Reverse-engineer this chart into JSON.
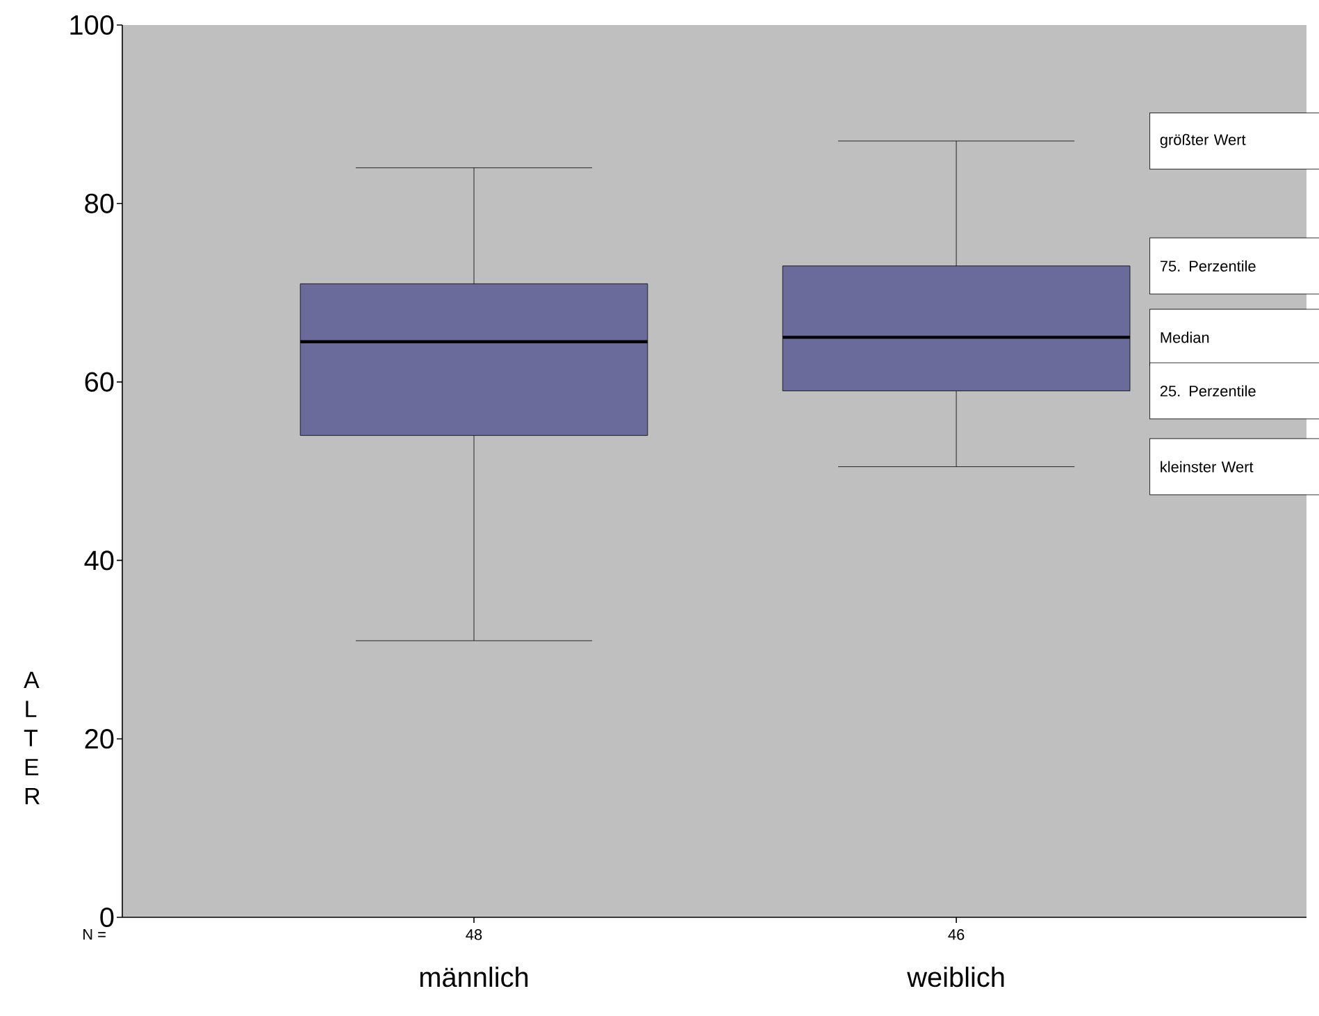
{
  "chart_data": {
    "type": "box",
    "ylabel": "A L T E R",
    "categories": [
      "männlich",
      "weiblich"
    ],
    "boxes": [
      {
        "low": 31,
        "q1": 54,
        "median": 64.5,
        "q3": 71,
        "high": 84
      },
      {
        "low": 50.5,
        "q1": 59,
        "median": 65,
        "q3": 73,
        "high": 87
      }
    ],
    "color": "#6b6b9b",
    "ylim": [
      0,
      100
    ],
    "yticks": [
      0,
      20,
      40,
      60,
      80,
      100
    ],
    "grid": false,
    "annotations": [
      "N =",
      "48",
      "46",
      "größter Wert",
      "75. Perzentile",
      "Median",
      "25. Perzentile",
      "kleinster Wert"
    ]
  }
}
